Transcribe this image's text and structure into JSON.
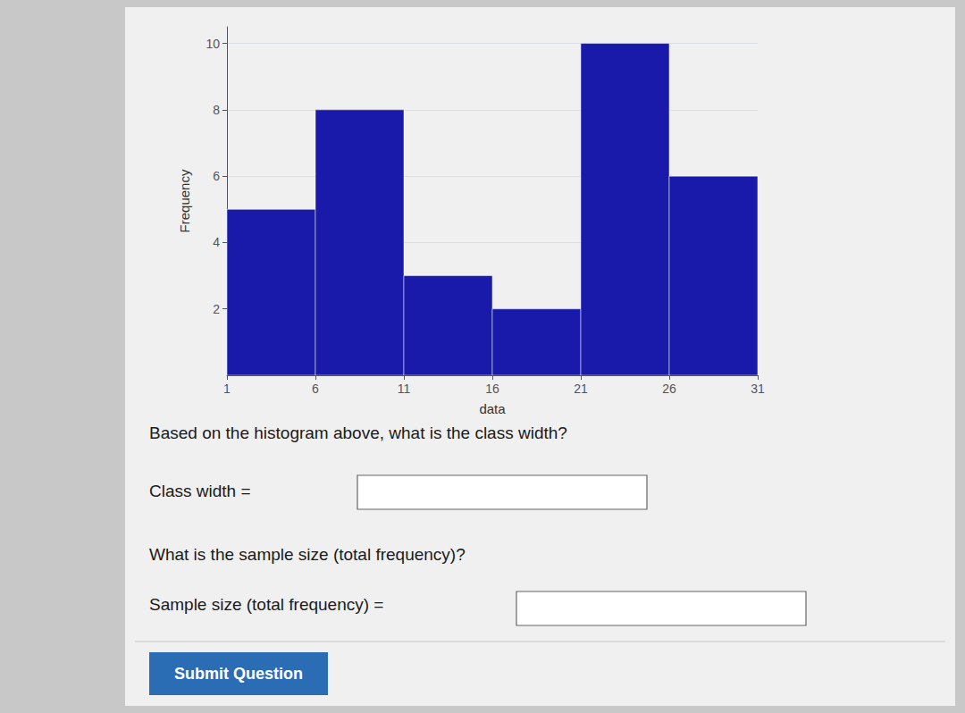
{
  "chart_data": {
    "type": "histogram",
    "bins": [
      1,
      6,
      11,
      16,
      21,
      26,
      31
    ],
    "values": [
      5,
      8,
      3,
      2,
      10,
      6
    ],
    "color": "#1a1aaa",
    "xlabel": "data",
    "ylabel": "Frequency",
    "xlim": [
      1,
      31
    ],
    "ylim": [
      0,
      10.5
    ],
    "xticks": [
      1,
      6,
      11,
      16,
      21,
      26,
      31
    ],
    "yticks": [
      2,
      4,
      6,
      8,
      10
    ],
    "grid": true,
    "annotations": [
      "Based on the histogram above, what is the class width?",
      "Class width =",
      "What is the sample size (total frequency)?",
      "Sample size (total frequency) =",
      "Submit Question"
    ]
  }
}
